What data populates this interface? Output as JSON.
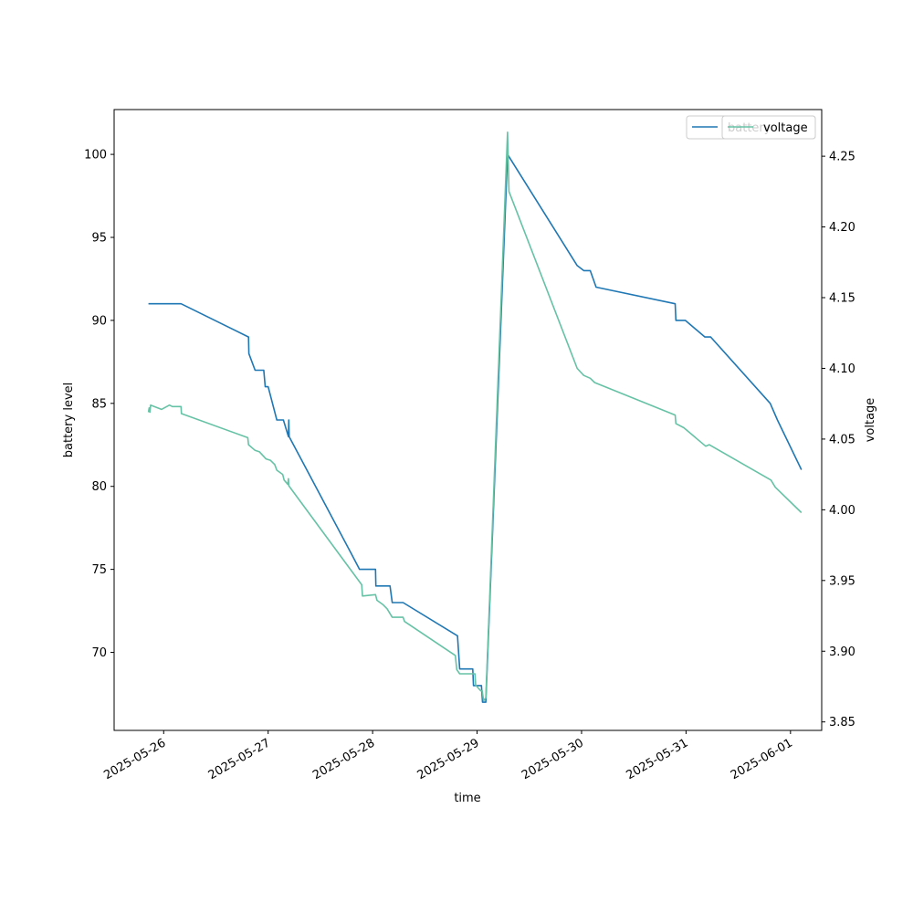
{
  "chart_data": {
    "type": "line",
    "title": "",
    "xlabel": "time",
    "ylabel_left": "battery level",
    "ylabel_right": "voltage",
    "x_ticks": [
      "2025-05-26",
      "2025-05-27",
      "2025-05-28",
      "2025-05-29",
      "2025-05-30",
      "2025-05-31",
      "2025-06-01"
    ],
    "x_range": [
      "2025-05-25T12:37",
      "2025-06-01T07:10"
    ],
    "y_left_ticks": [
      "70",
      "75",
      "80",
      "85",
      "90",
      "95",
      "100"
    ],
    "y_left_range": [
      65.3,
      102.7
    ],
    "y_right_ticks": [
      "3.85",
      "3.90",
      "3.95",
      "4.00",
      "4.05",
      "4.10",
      "4.15",
      "4.20",
      "4.25"
    ],
    "y_right_range": [
      3.844,
      4.283
    ],
    "grid": false,
    "legend_position": "top-right",
    "legend": [
      "battery",
      "voltage"
    ],
    "series": [
      {
        "name": "battery",
        "axis": "left",
        "color": "#1f77b4",
        "points": [
          [
            "2025-05-25T20:30",
            91
          ],
          [
            "2025-05-26T04:00",
            91
          ],
          [
            "2025-05-26T19:30",
            89
          ],
          [
            "2025-05-26T19:35",
            88
          ],
          [
            "2025-05-26T21:00",
            87
          ],
          [
            "2025-05-26T23:00",
            87
          ],
          [
            "2025-05-26T23:20",
            86
          ],
          [
            "2025-05-27T00:00",
            86
          ],
          [
            "2025-05-27T02:00",
            84
          ],
          [
            "2025-05-27T03:30",
            84
          ],
          [
            "2025-05-27T04:40",
            83
          ],
          [
            "2025-05-27T04:45",
            84
          ],
          [
            "2025-05-27T04:50",
            83
          ],
          [
            "2025-05-27T19:00",
            76
          ],
          [
            "2025-05-27T21:00",
            75
          ],
          [
            "2025-05-28T00:40",
            75
          ],
          [
            "2025-05-28T00:45",
            74
          ],
          [
            "2025-05-28T04:00",
            74
          ],
          [
            "2025-05-28T04:30",
            73
          ],
          [
            "2025-05-28T07:00",
            73
          ],
          [
            "2025-05-28T19:30",
            71
          ],
          [
            "2025-05-28T20:00",
            69
          ],
          [
            "2025-05-28T23:00",
            69
          ],
          [
            "2025-05-28T23:10",
            68
          ],
          [
            "2025-05-29T01:00",
            68
          ],
          [
            "2025-05-29T01:15",
            67
          ],
          [
            "2025-05-29T02:00",
            67
          ],
          [
            "2025-05-29T07:00",
            100
          ],
          [
            "2025-05-29T23:00",
            93.3
          ],
          [
            "2025-05-30T00:30",
            93
          ],
          [
            "2025-05-30T02:00",
            93
          ],
          [
            "2025-05-30T03:20",
            92
          ],
          [
            "2025-05-30T21:30",
            91
          ],
          [
            "2025-05-30T21:40",
            90
          ],
          [
            "2025-05-30T23:50",
            90
          ],
          [
            "2025-05-31T04:20",
            89
          ],
          [
            "2025-05-31T05:40",
            89
          ],
          [
            "2025-05-31T19:20",
            85
          ],
          [
            "2025-05-31T21:00",
            84
          ],
          [
            "2025-06-01T02:30",
            81
          ]
        ]
      },
      {
        "name": "voltage",
        "axis": "right",
        "color": "#66c2a5",
        "points": [
          [
            "2025-05-25T20:30",
            4.069
          ],
          [
            "2025-05-25T20:40",
            4.072
          ],
          [
            "2025-05-25T20:50",
            4.069
          ],
          [
            "2025-05-25T21:00",
            4.074
          ],
          [
            "2025-05-25T23:30",
            4.071
          ],
          [
            "2025-05-26T01:20",
            4.074
          ],
          [
            "2025-05-26T02:00",
            4.073
          ],
          [
            "2025-05-26T04:00",
            4.073
          ],
          [
            "2025-05-26T04:05",
            4.068
          ],
          [
            "2025-05-26T19:20",
            4.051
          ],
          [
            "2025-05-26T19:30",
            4.046
          ],
          [
            "2025-05-26T21:00",
            4.042
          ],
          [
            "2025-05-26T22:00",
            4.041
          ],
          [
            "2025-05-26T23:30",
            4.036
          ],
          [
            "2025-05-27T00:30",
            4.035
          ],
          [
            "2025-05-27T01:30",
            4.032
          ],
          [
            "2025-05-27T02:00",
            4.028
          ],
          [
            "2025-05-27T03:20",
            4.025
          ],
          [
            "2025-05-27T03:40",
            4.021
          ],
          [
            "2025-05-27T04:30",
            4.018
          ],
          [
            "2025-05-27T04:40",
            4.022
          ],
          [
            "2025-05-27T04:45",
            4.017
          ],
          [
            "2025-05-27T21:30",
            3.947
          ],
          [
            "2025-05-27T21:40",
            3.939
          ],
          [
            "2025-05-28T00:40",
            3.94
          ],
          [
            "2025-05-28T01:00",
            3.936
          ],
          [
            "2025-05-28T02:20",
            3.933
          ],
          [
            "2025-05-28T03:20",
            3.93
          ],
          [
            "2025-05-28T04:30",
            3.924
          ],
          [
            "2025-05-28T07:00",
            3.924
          ],
          [
            "2025-05-28T07:20",
            3.921
          ],
          [
            "2025-05-28T19:00",
            3.897
          ],
          [
            "2025-05-28T19:20",
            3.887
          ],
          [
            "2025-05-28T20:00",
            3.884
          ],
          [
            "2025-05-28T23:30",
            3.884
          ],
          [
            "2025-05-28T23:40",
            3.876
          ],
          [
            "2025-05-29T00:50",
            3.872
          ],
          [
            "2025-05-29T01:10",
            3.872
          ],
          [
            "2025-05-29T01:30",
            3.865
          ],
          [
            "2025-05-29T02:00",
            3.867
          ],
          [
            "2025-05-29T07:00",
            4.267
          ],
          [
            "2025-05-29T07:20",
            4.225
          ],
          [
            "2025-05-29T23:00",
            4.1
          ],
          [
            "2025-05-30T00:30",
            4.095
          ],
          [
            "2025-05-30T02:00",
            4.093
          ],
          [
            "2025-05-30T03:00",
            4.09
          ],
          [
            "2025-05-30T21:30",
            4.067
          ],
          [
            "2025-05-30T21:40",
            4.061
          ],
          [
            "2025-05-30T23:30",
            4.058
          ],
          [
            "2025-05-31T04:30",
            4.045
          ],
          [
            "2025-05-31T05:20",
            4.046
          ],
          [
            "2025-05-31T19:30",
            4.021
          ],
          [
            "2025-05-31T20:30",
            4.016
          ],
          [
            "2025-06-01T02:30",
            3.998
          ]
        ]
      }
    ]
  }
}
